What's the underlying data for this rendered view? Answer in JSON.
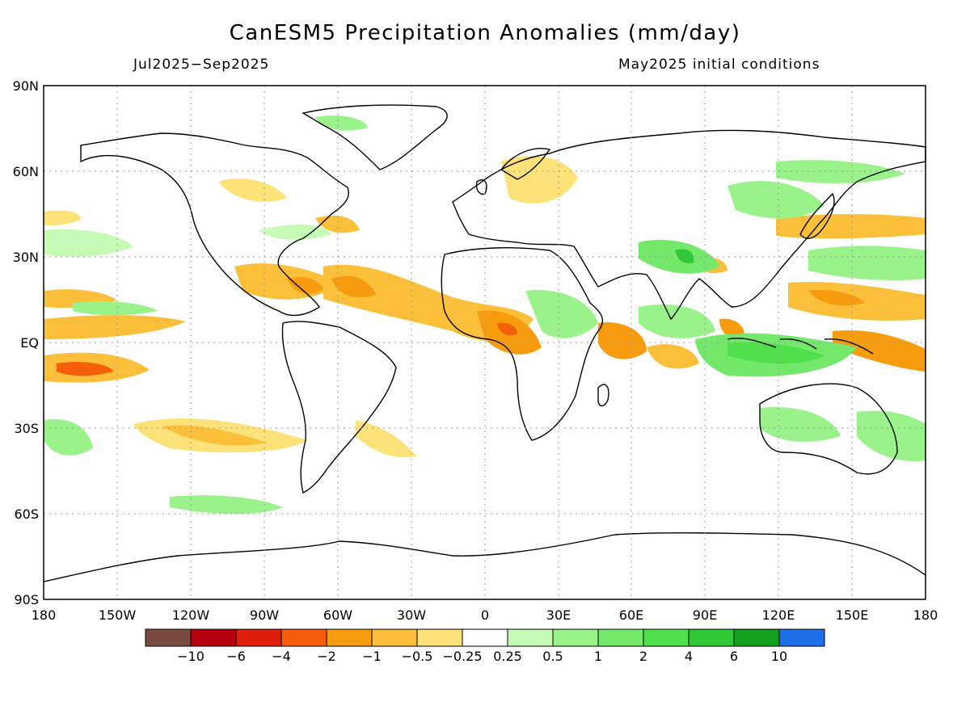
{
  "title": "CanESM5 Precipitation Anomalies (mm/day)",
  "period": "Jul2025−Sep2025",
  "init": "May2025 initial conditions",
  "lat_labels": [
    "90N",
    "60N",
    "30N",
    "EQ",
    "30S",
    "60S",
    "90S"
  ],
  "lon_labels": [
    "180",
    "150W",
    "120W",
    "90W",
    "60W",
    "30W",
    "0",
    "30E",
    "60E",
    "90E",
    "120E",
    "150E",
    "180"
  ],
  "colorbar": {
    "colors": [
      "#7a4b3f",
      "#b4000f",
      "#e01e0c",
      "#f55f0a",
      "#f79b0f",
      "#fbbf3a",
      "#fde27a",
      "#ffffff",
      "#c6fbb6",
      "#9af38a",
      "#73e86a",
      "#4fe04c",
      "#30c834",
      "#12a11d",
      "#1e6ee8"
    ],
    "labels": [
      "−10",
      "−6",
      "−4",
      "−2",
      "−1",
      "−0.5",
      "−0.25",
      "0.25",
      "0.5",
      "1",
      "2",
      "4",
      "6",
      "10"
    ]
  }
}
